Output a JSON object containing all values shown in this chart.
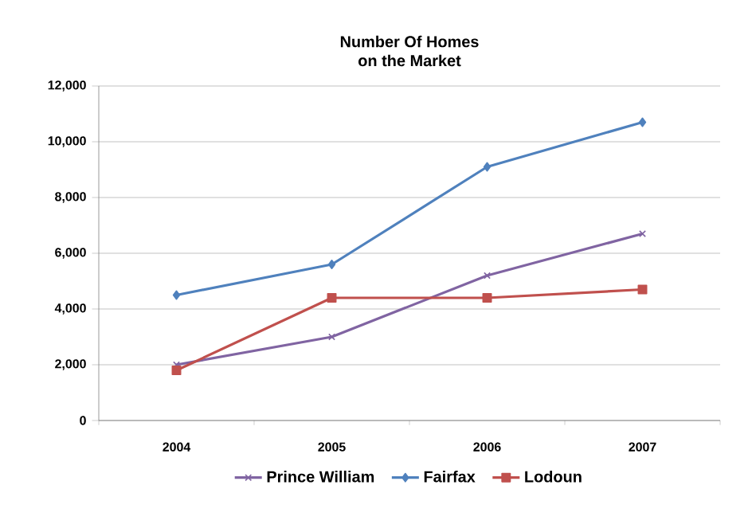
{
  "chart_data": {
    "type": "line",
    "title": "Number Of Homes\non the Market",
    "categories": [
      "2004",
      "2005",
      "2006",
      "2007"
    ],
    "series": [
      {
        "name": "Prince William",
        "color": "#8064a2",
        "marker": "cross",
        "values": [
          2000,
          3000,
          5200,
          6700
        ]
      },
      {
        "name": "Fairfax",
        "color": "#4f81bd",
        "marker": "diamond",
        "values": [
          4500,
          5600,
          9100,
          10700
        ]
      },
      {
        "name": "Lodoun",
        "color": "#c0504d",
        "marker": "square",
        "values": [
          1800,
          4400,
          4400,
          4700
        ]
      }
    ],
    "ylim": [
      0,
      12000
    ],
    "yticks": [
      {
        "value": 0,
        "label": "0"
      },
      {
        "value": 2000,
        "label": "2,000"
      },
      {
        "value": 4000,
        "label": "4,000"
      },
      {
        "value": 6000,
        "label": "6,000"
      },
      {
        "value": 8000,
        "label": "8,000"
      },
      {
        "value": 10000,
        "label": "10,000"
      },
      {
        "value": 12000,
        "label": "12,000"
      }
    ],
    "grid": "y",
    "legend": "bottom"
  }
}
